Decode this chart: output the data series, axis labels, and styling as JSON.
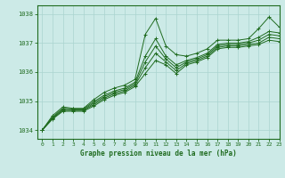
{
  "title": "Graphe pression niveau de la mer (hPa)",
  "bg_color": "#cceae7",
  "grid_color": "#aad4d0",
  "line_color": "#1f6b1f",
  "xlim": [
    -0.5,
    23
  ],
  "ylim": [
    1033.7,
    1038.3
  ],
  "yticks": [
    1034,
    1035,
    1036,
    1037,
    1038
  ],
  "xticks": [
    0,
    1,
    2,
    3,
    4,
    5,
    6,
    7,
    8,
    9,
    10,
    11,
    12,
    13,
    14,
    15,
    16,
    17,
    18,
    19,
    20,
    21,
    22,
    23
  ],
  "lines": [
    [
      1034.0,
      1034.5,
      1034.8,
      1034.75,
      1034.75,
      1035.05,
      1035.3,
      1035.45,
      1035.55,
      1035.75,
      1037.3,
      1037.85,
      1036.9,
      1036.6,
      1036.55,
      1036.65,
      1036.8,
      1037.1,
      1037.1,
      1037.1,
      1037.15,
      1037.5,
      1037.9,
      1037.55
    ],
    [
      1034.0,
      1034.45,
      1034.75,
      1034.73,
      1034.73,
      1034.98,
      1035.2,
      1035.35,
      1035.45,
      1035.65,
      1036.55,
      1037.15,
      1036.55,
      1036.25,
      1036.4,
      1036.5,
      1036.65,
      1036.95,
      1037.0,
      1037.0,
      1037.05,
      1037.2,
      1037.4,
      1037.35
    ],
    [
      1034.0,
      1034.42,
      1034.72,
      1034.7,
      1034.7,
      1034.93,
      1035.15,
      1035.3,
      1035.4,
      1035.6,
      1036.35,
      1036.9,
      1036.45,
      1036.15,
      1036.35,
      1036.45,
      1036.6,
      1036.9,
      1036.95,
      1036.95,
      1037.0,
      1037.1,
      1037.3,
      1037.25
    ],
    [
      1034.0,
      1034.4,
      1034.68,
      1034.68,
      1034.68,
      1034.88,
      1035.1,
      1035.25,
      1035.35,
      1035.55,
      1036.15,
      1036.65,
      1036.35,
      1036.05,
      1036.3,
      1036.4,
      1036.55,
      1036.85,
      1036.9,
      1036.9,
      1036.95,
      1037.0,
      1037.2,
      1037.15
    ],
    [
      1034.0,
      1034.38,
      1034.65,
      1034.65,
      1034.65,
      1034.83,
      1035.05,
      1035.2,
      1035.3,
      1035.5,
      1035.95,
      1036.4,
      1036.25,
      1035.95,
      1036.25,
      1036.35,
      1036.5,
      1036.8,
      1036.85,
      1036.85,
      1036.9,
      1036.95,
      1037.1,
      1037.05
    ]
  ]
}
